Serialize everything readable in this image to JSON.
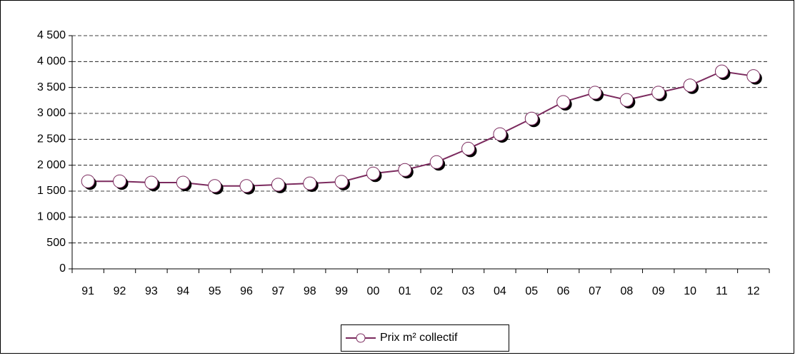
{
  "chart_data": {
    "type": "line",
    "categories": [
      "91",
      "92",
      "93",
      "94",
      "95",
      "96",
      "97",
      "98",
      "99",
      "00",
      "01",
      "02",
      "03",
      "04",
      "05",
      "06",
      "07",
      "08",
      "09",
      "10",
      "11",
      "12"
    ],
    "series": [
      {
        "name": "Prix m² collectif",
        "color": "#7b2a5e",
        "values": [
          1690,
          1690,
          1665,
          1665,
          1600,
          1600,
          1625,
          1650,
          1680,
          1840,
          1910,
          2060,
          2320,
          2600,
          2900,
          3220,
          3400,
          3260,
          3400,
          3540,
          3810,
          3720
        ]
      }
    ],
    "ylim": [
      0,
      4500
    ],
    "yticks": [
      0,
      500,
      {
        "value": 1000,
        "label": "1 000"
      },
      {
        "value": 1500,
        "label": "1 500"
      },
      {
        "value": 2000,
        "label": "2 000"
      },
      {
        "value": 2500,
        "label": "2 500"
      },
      {
        "value": 3000,
        "label": "3 000"
      },
      {
        "value": 3500,
        "label": "3 500"
      },
      {
        "value": 4000,
        "label": "4 000"
      },
      {
        "value": 4500,
        "label": "4 500"
      }
    ],
    "grid": true,
    "legend": "bottom"
  }
}
